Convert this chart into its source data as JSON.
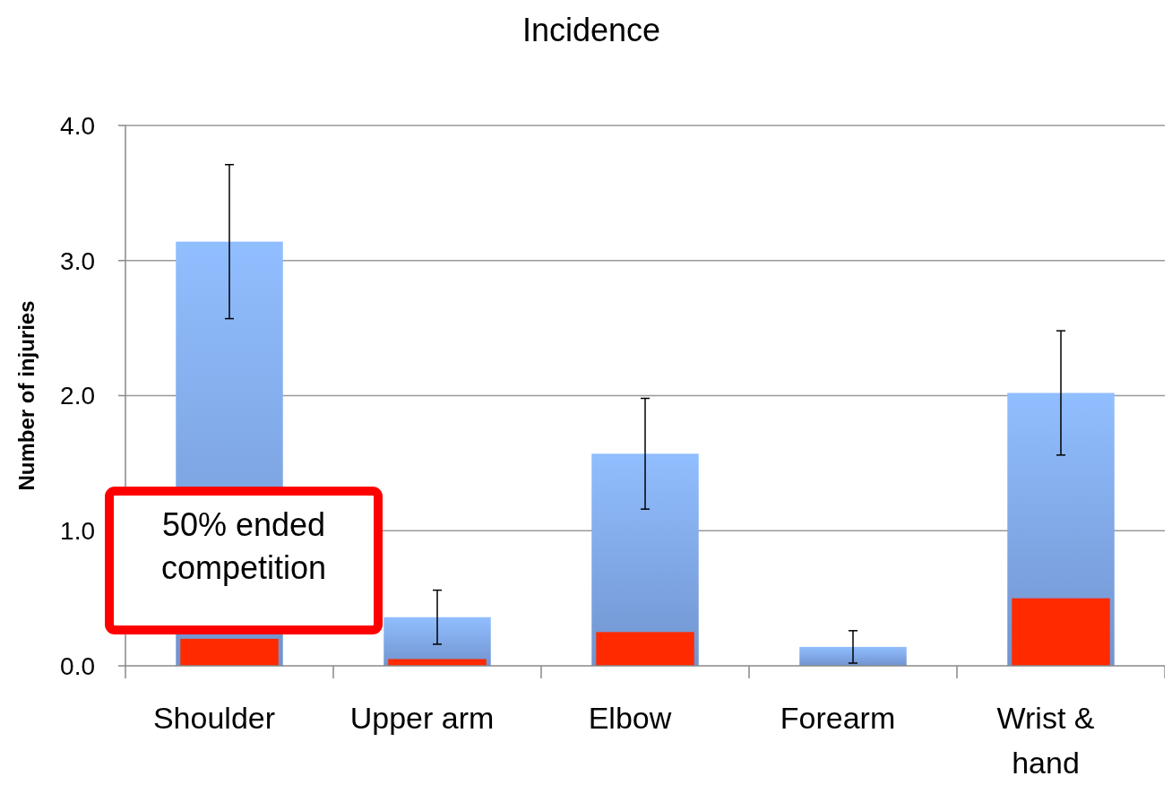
{
  "chart_data": {
    "type": "bar",
    "title": "Incidence",
    "ylabel": "Number of injuries",
    "categories": [
      "Shoulder",
      "Upper arm",
      "Elbow",
      "Forearm",
      "Wrist & hand"
    ],
    "series": [
      {
        "color": "#80a8ea",
        "values": [
          3.14,
          0.36,
          1.57,
          0.14,
          2.02
        ],
        "errors": [
          0.57,
          0.2,
          0.41,
          0.12,
          0.46
        ]
      },
      {
        "color": "#ff2a00",
        "values": [
          0.2,
          0.05,
          0.25,
          null,
          0.5
        ]
      }
    ],
    "ylim": [
      0,
      4
    ],
    "yticks": [
      {
        "value": 0,
        "label": "0.0"
      },
      {
        "value": 1,
        "label": "1.0"
      },
      {
        "value": 2,
        "label": "2.0"
      },
      {
        "value": 3,
        "label": "3.0"
      },
      {
        "value": 4,
        "label": "4.0"
      }
    ],
    "grid": "y",
    "annotations": [
      "50% ended competition"
    ]
  }
}
